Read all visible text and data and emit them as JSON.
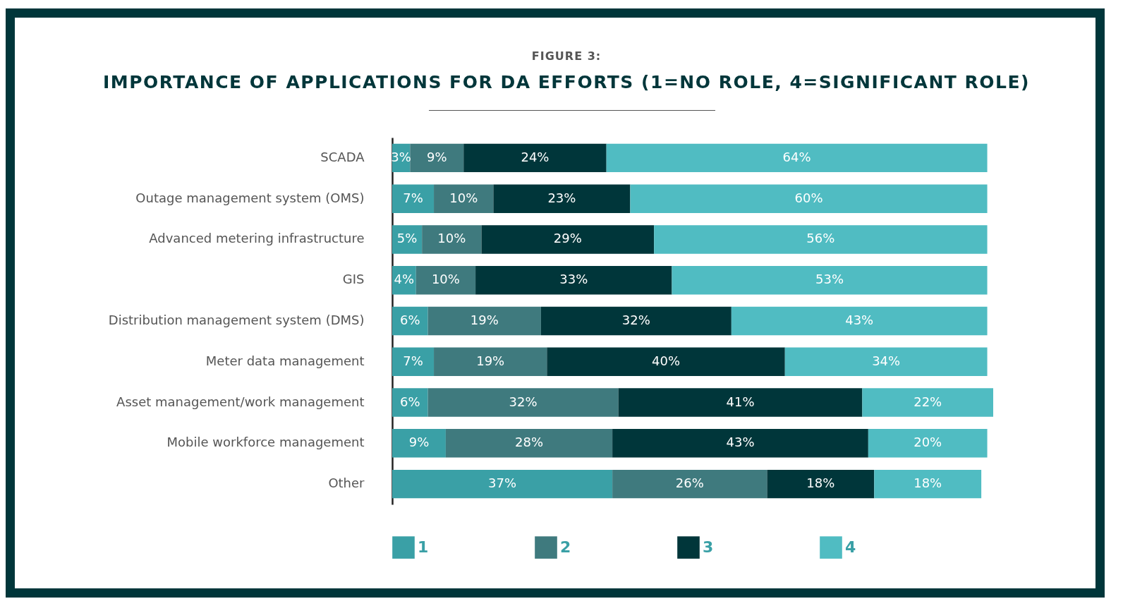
{
  "chart_data": {
    "type": "bar",
    "orientation": "horizontal",
    "stacked": true,
    "legend": "bottom",
    "grid": false,
    "title": "IMPORTANCE OF APPLICATIONS FOR DA EFFORTS (1=NO ROLE, 4=SIGNIFICANT ROLE)",
    "subtitle": "FIGURE 3:",
    "categories": [
      "SCADA",
      "Outage management system (OMS)",
      "Advanced metering infrastructure",
      "GIS",
      "Distribution management system (DMS)",
      "Meter data management",
      "Asset management/work management",
      "Mobile workforce management",
      "Other"
    ],
    "series": [
      {
        "name": "1",
        "color": "#3aa0a6",
        "values": [
          3,
          7,
          5,
          4,
          6,
          7,
          6,
          9,
          37
        ],
        "value_labels": [
          "3%",
          "7%",
          "5%",
          "4%",
          "6%",
          "7%",
          "6%",
          "9%",
          "37%"
        ]
      },
      {
        "name": "2",
        "color": "#3f7a7e",
        "values": [
          9,
          10,
          10,
          10,
          19,
          19,
          32,
          28,
          26
        ],
        "value_labels": [
          "9%",
          "10%",
          "10%",
          "10%",
          "19%",
          "19%",
          "32%",
          "28%",
          "26%"
        ]
      },
      {
        "name": "3",
        "color": "#00363a",
        "values": [
          24,
          23,
          29,
          33,
          32,
          40,
          41,
          43,
          18
        ],
        "value_labels": [
          "24%",
          "23%",
          "29%",
          "33%",
          "32%",
          "40%",
          "41%",
          "43%",
          "18%"
        ]
      },
      {
        "name": "4",
        "color": "#50bcc2",
        "values": [
          64,
          60,
          56,
          53,
          43,
          34,
          22,
          20,
          18
        ],
        "value_labels": [
          "64%",
          "60%",
          "56%",
          "53%",
          "43%",
          "34%",
          "22%",
          "20%",
          "18%"
        ]
      }
    ]
  }
}
